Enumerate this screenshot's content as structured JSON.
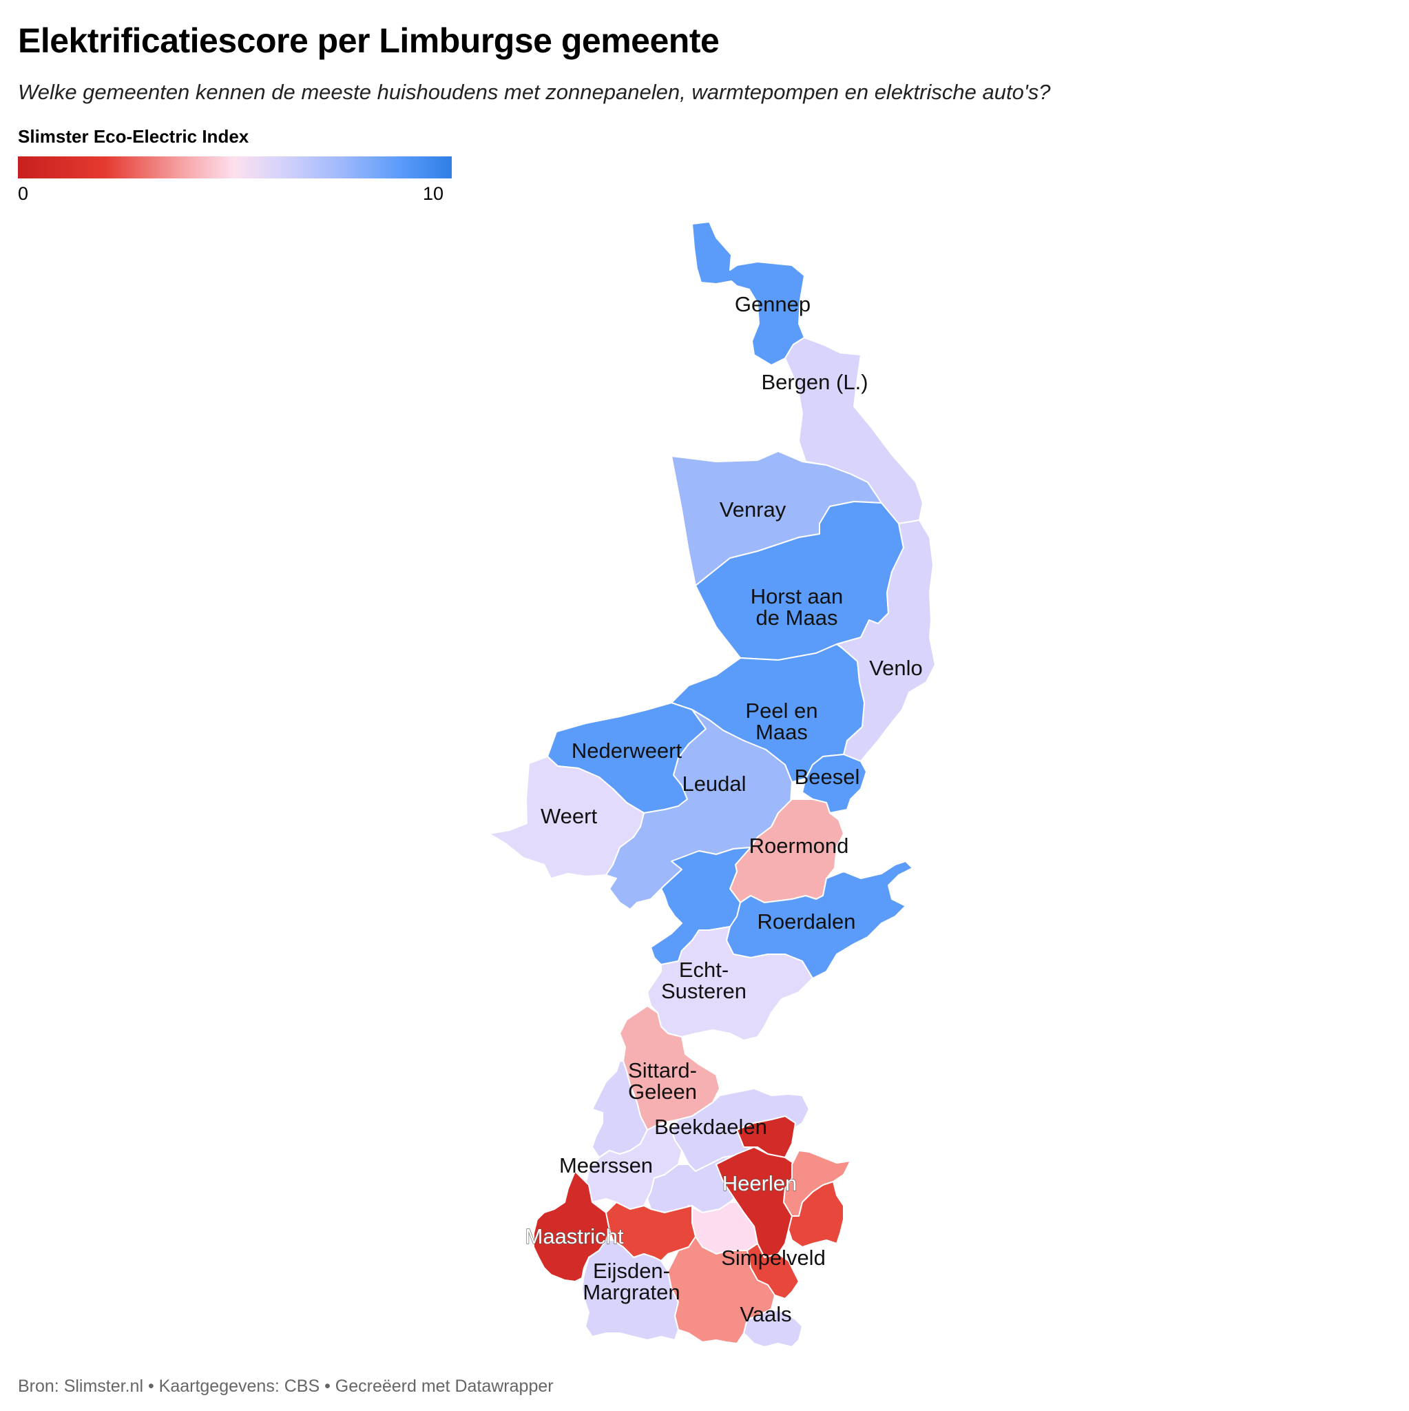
{
  "title": "Elektrificatiescore per Limburgse gemeente",
  "subtitle": "Welke gemeenten kennen de meeste huishoudens met zonnepanelen, warmtepompen en elektrische auto's?",
  "legend": {
    "title": "Slimster Eco-Electric Index",
    "min": "0",
    "max": "10",
    "scale_colors": [
      "#c8201e",
      "#e43a30",
      "#f6a4a6",
      "#fde0ee",
      "#d8d4fb",
      "#9db8fb",
      "#5b9cfa",
      "#2f7fe6"
    ]
  },
  "labels": {
    "gennep": "Gennep",
    "bergen": "Bergen (L.)",
    "venray": "Venray",
    "horst_1": "Horst aan",
    "horst_2": "de Maas",
    "venlo": "Venlo",
    "peel_1": "Peel en",
    "peel_2": "Maas",
    "nederweert": "Nederweert",
    "leudal": "Leudal",
    "beesel": "Beesel",
    "weert": "Weert",
    "roermond": "Roermond",
    "roerdalen": "Roerdalen",
    "echt_1": "Echt-",
    "echt_2": "Susteren",
    "sittard_1": "Sittard-",
    "sittard_2": "Geleen",
    "beekdaelen": "Beekdaelen",
    "meerssen": "Meerssen",
    "heerlen": "Heerlen",
    "maastricht": "Maastricht",
    "simpelveld": "Simpelveld",
    "eijsden_1": "Eijsden-",
    "eijsden_2": "Margraten",
    "vaals": "Vaals"
  },
  "colors": {
    "strong_blue": "#5b9cfa",
    "light_blue": "#9db8fb",
    "lavender": "#d8d4fb",
    "pale_lavender": "#e3dbfb",
    "pale_pink": "#fcdcee",
    "pink": "#f7b0b2",
    "salmon": "#f58f88",
    "red": "#e8483c",
    "dark_red": "#d32b27"
  },
  "footer": "Bron: Slimster.nl • Kaartgegevens: CBS • Gecreëerd met Datawrapper"
}
